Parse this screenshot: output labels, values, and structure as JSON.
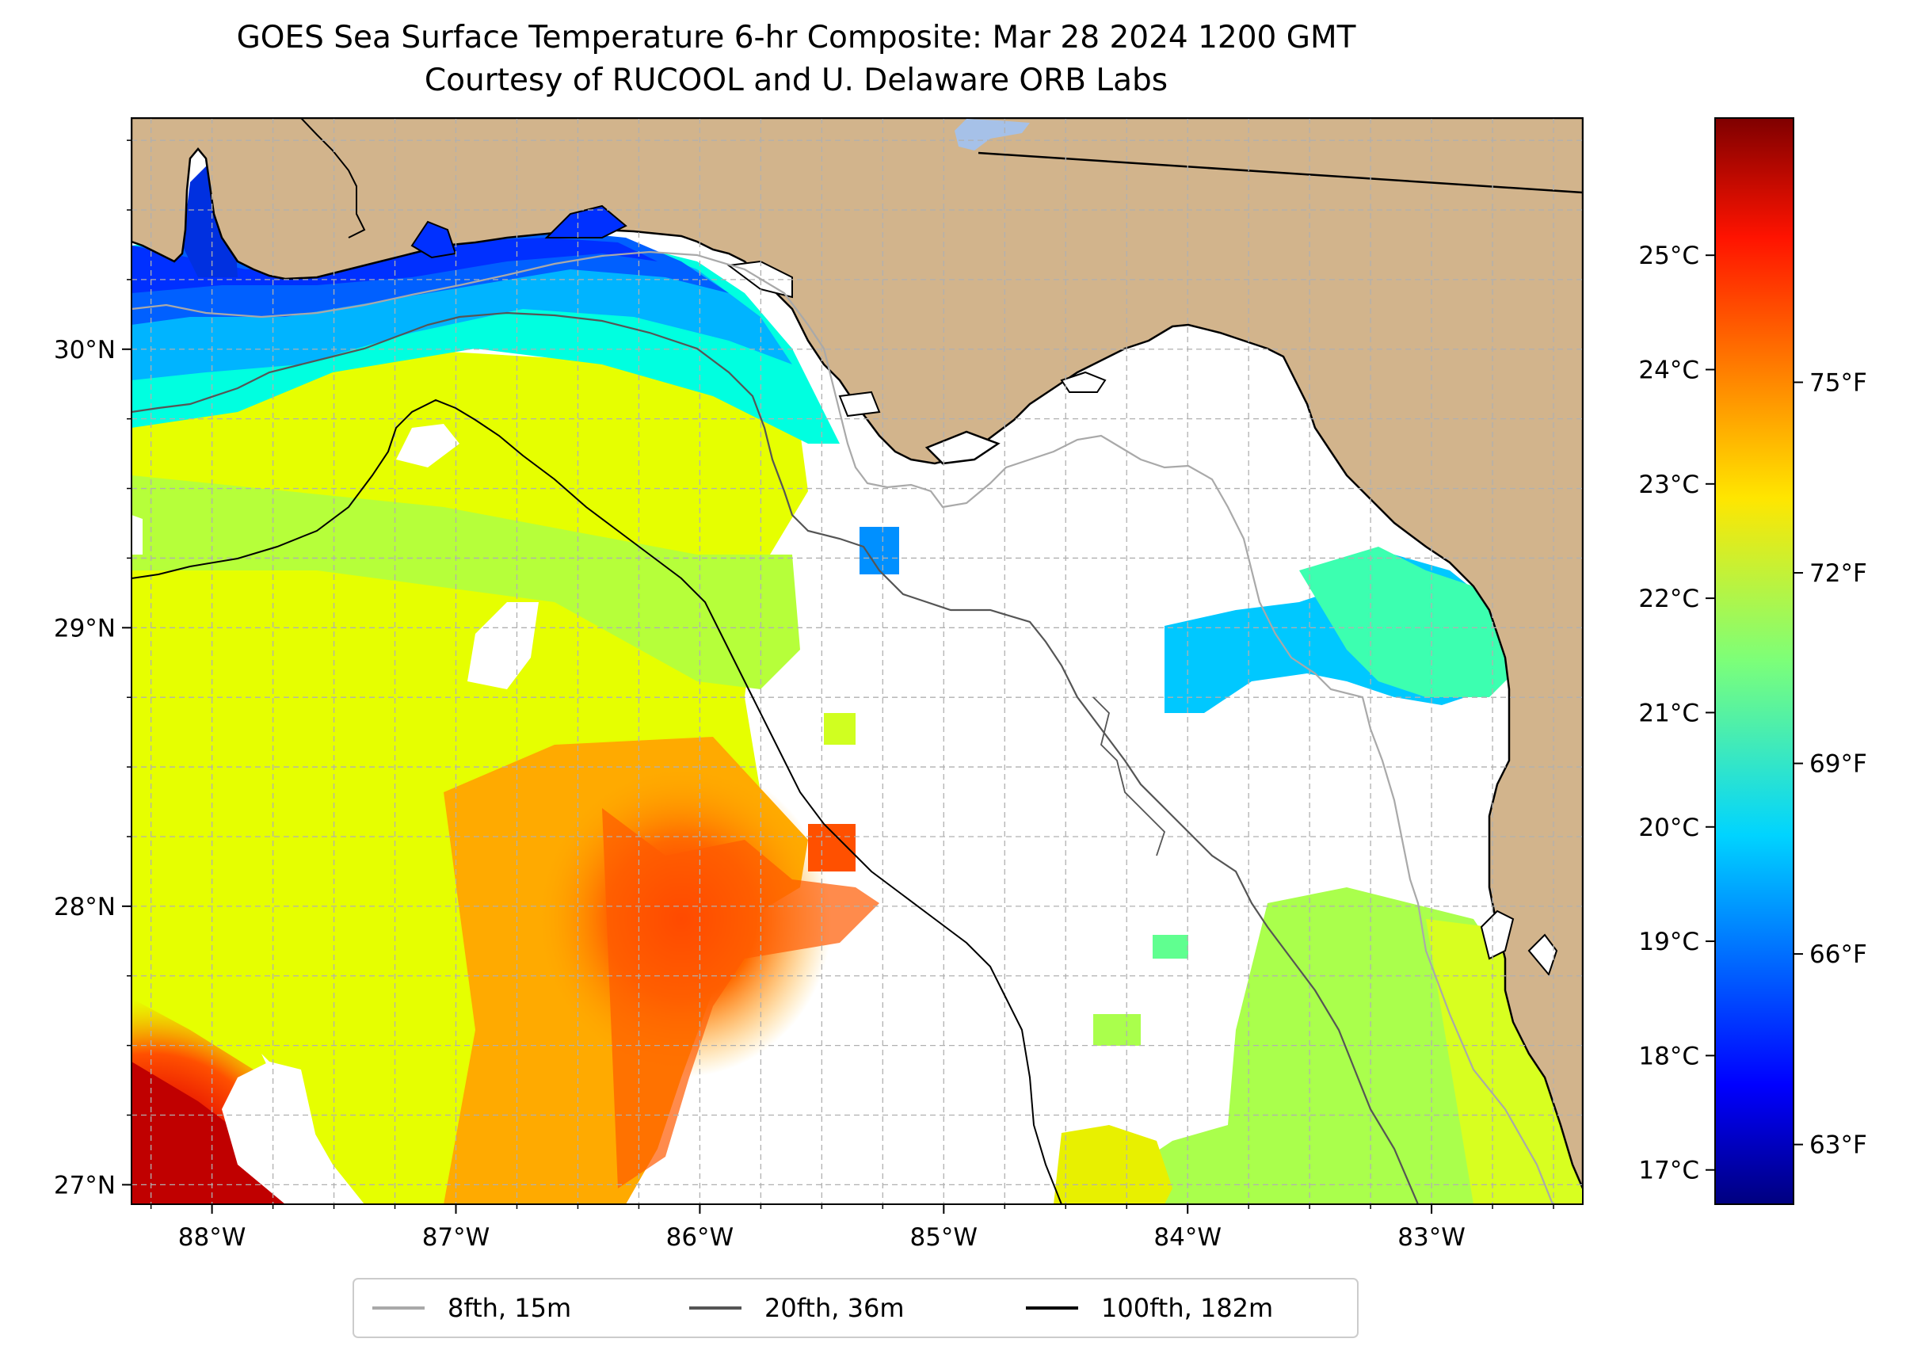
{
  "title": {
    "line1": "GOES Sea Surface Temperature 6-hr Composite: Mar 28 2024 1200 GMT",
    "line2": "Courtesy of RUCOOL and U. Delaware ORB Labs"
  },
  "map": {
    "lon_range": [
      -88.33,
      -82.38
    ],
    "lat_range": [
      26.93,
      30.83
    ],
    "lon_ticks": [
      {
        "value": -88,
        "label": "88°W"
      },
      {
        "value": -87,
        "label": "87°W"
      },
      {
        "value": -86,
        "label": "86°W"
      },
      {
        "value": -85,
        "label": "85°W"
      },
      {
        "value": -84,
        "label": "84°W"
      },
      {
        "value": -83,
        "label": "83°W"
      }
    ],
    "lat_ticks": [
      {
        "value": 30,
        "label": "30°N"
      },
      {
        "value": 29,
        "label": "29°N"
      },
      {
        "value": 28,
        "label": "28°N"
      },
      {
        "value": 27,
        "label": "27°N"
      }
    ],
    "colors": {
      "land": "#d2b48c",
      "no_data": "#ffffff",
      "grid": "#b0b0b0",
      "lake": "#a6c1e8"
    }
  },
  "colorbar": {
    "colormap": "jet",
    "range_c": [
      16.7,
      26.2
    ],
    "celsius_ticks": [
      {
        "value": 17,
        "label": "17°C"
      },
      {
        "value": 18,
        "label": "18°C"
      },
      {
        "value": 19,
        "label": "19°C"
      },
      {
        "value": 20,
        "label": "20°C"
      },
      {
        "value": 21,
        "label": "21°C"
      },
      {
        "value": 22,
        "label": "22°C"
      },
      {
        "value": 23,
        "label": "23°C"
      },
      {
        "value": 24,
        "label": "24°C"
      },
      {
        "value": 25,
        "label": "25°C"
      }
    ],
    "fahrenheit_ticks": [
      {
        "value": 63,
        "label": "63°F"
      },
      {
        "value": 66,
        "label": "66°F"
      },
      {
        "value": 69,
        "label": "69°F"
      },
      {
        "value": 72,
        "label": "72°F"
      },
      {
        "value": 75,
        "label": "75°F"
      }
    ]
  },
  "legend": {
    "items": [
      {
        "label": "8fth, 15m",
        "color": "#a9a9a9"
      },
      {
        "label": "20fth, 36m",
        "color": "#555555"
      },
      {
        "label": "100fth, 182m",
        "color": "#000000"
      }
    ]
  }
}
